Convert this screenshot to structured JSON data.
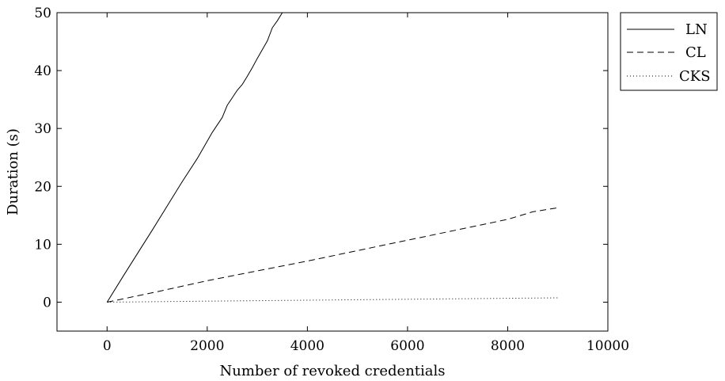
{
  "chart_data": {
    "type": "line",
    "title": "",
    "xlabel": "Number of revoked credentials",
    "ylabel": "Duration (s)",
    "xlim": [
      -1000,
      10000
    ],
    "ylim": [
      -5,
      50
    ],
    "xticks": [
      0,
      2000,
      4000,
      6000,
      8000,
      10000
    ],
    "yticks": [
      0,
      10,
      20,
      30,
      40,
      50
    ],
    "grid": false,
    "legend_position": "outside-top-right",
    "series": [
      {
        "name": "LN",
        "style": "solid",
        "color": "#000000",
        "x": [
          0,
          300,
          600,
          900,
          1200,
          1500,
          1800,
          2100,
          2300,
          2400,
          2500,
          2600,
          2700,
          2800,
          2900,
          3000,
          3100,
          3200,
          3300,
          3400,
          3500
        ],
        "y": [
          0,
          4.2,
          8.3,
          12.4,
          16.6,
          20.8,
          24.8,
          29.3,
          31.9,
          34.0,
          35.3,
          36.6,
          37.6,
          39.0,
          40.5,
          42.1,
          43.6,
          45.1,
          47.4,
          48.6,
          50.0
        ]
      },
      {
        "name": "CL",
        "style": "dashed",
        "color": "#000000",
        "x": [
          0,
          1000,
          2000,
          3000,
          4000,
          5000,
          6000,
          7000,
          8000,
          8500,
          9000
        ],
        "y": [
          0,
          1.8,
          3.7,
          5.4,
          7.1,
          8.9,
          10.7,
          12.5,
          14.3,
          15.6,
          16.3
        ]
      },
      {
        "name": "CKS",
        "style": "dotted",
        "color": "#000000",
        "x": [
          0,
          2000,
          4000,
          6000,
          8000,
          9000
        ],
        "y": [
          0,
          0.17,
          0.34,
          0.5,
          0.67,
          0.75
        ]
      }
    ]
  }
}
